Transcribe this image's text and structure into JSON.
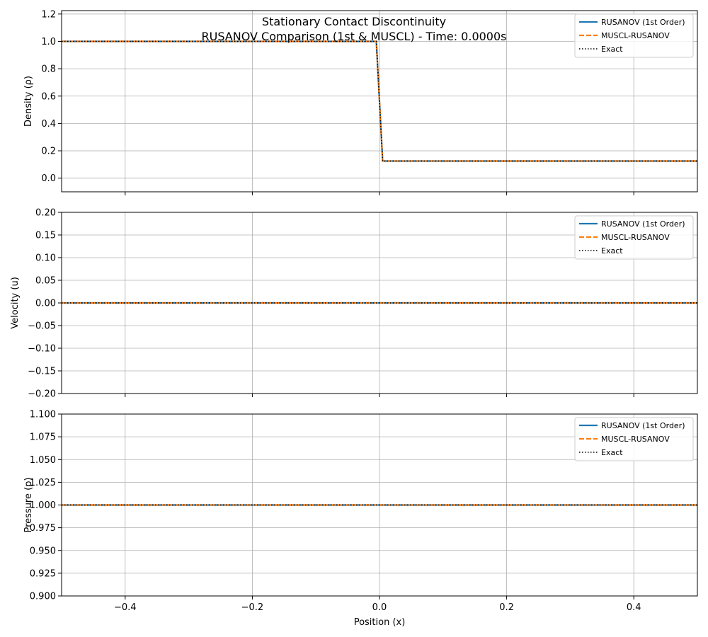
{
  "chart_data": {
    "title": "Stationary Contact Discontinuity",
    "subtitle": "RUSANOV Comparison (1st & MUSCL) - Time: 0.0000s",
    "xlabel": "Position (x)",
    "xlim": [
      -0.5,
      0.5
    ],
    "xticks": [
      -0.4,
      -0.2,
      0.0,
      0.2,
      0.4
    ],
    "xtick_labels": [
      "−0.4",
      "−0.2",
      "0.0",
      "0.2",
      "0.4"
    ],
    "colors": {
      "rusanov": "#1f77b4",
      "muscl": "#ff7f0e",
      "exact": "#000000"
    },
    "panels": [
      {
        "type": "line",
        "ylabel": "Density (ρ)",
        "ylim": [
          -0.1,
          1.225
        ],
        "yticks": [
          0.0,
          0.2,
          0.4,
          0.6,
          0.8,
          1.0,
          1.2
        ],
        "ytick_labels": [
          "0.0",
          "0.2",
          "0.4",
          "0.6",
          "0.8",
          "1.0",
          "1.2"
        ],
        "grid": true,
        "legend": "upper-right",
        "series": [
          {
            "name": "RUSANOV (1st Order)",
            "style": "solid",
            "color": "#1f77b4",
            "x": [
              -0.5,
              -0.005,
              0.005,
              0.5
            ],
            "y": [
              1.0,
              1.0,
              0.125,
              0.125
            ]
          },
          {
            "name": "MUSCL-RUSANOV",
            "style": "dashed",
            "color": "#ff7f0e",
            "x": [
              -0.5,
              -0.005,
              0.005,
              0.5
            ],
            "y": [
              1.0,
              1.0,
              0.125,
              0.125
            ]
          },
          {
            "name": "Exact",
            "style": "dotted",
            "color": "#000000",
            "x": [
              -0.5,
              -0.005,
              0.005,
              0.5
            ],
            "y": [
              1.0,
              1.0,
              0.125,
              0.125
            ]
          }
        ]
      },
      {
        "type": "line",
        "ylabel": "Velocity (u)",
        "ylim": [
          -0.2,
          0.2
        ],
        "yticks": [
          -0.2,
          -0.15,
          -0.1,
          -0.05,
          0.0,
          0.05,
          0.1,
          0.15,
          0.2
        ],
        "ytick_labels": [
          "−0.20",
          "−0.15",
          "−0.10",
          "−0.05",
          "0.00",
          "0.05",
          "0.10",
          "0.15",
          "0.20"
        ],
        "grid": true,
        "legend": "upper-right",
        "series": [
          {
            "name": "RUSANOV (1st Order)",
            "style": "solid",
            "color": "#1f77b4",
            "x": [
              -0.5,
              0.5
            ],
            "y": [
              0.0,
              0.0
            ]
          },
          {
            "name": "MUSCL-RUSANOV",
            "style": "dashed",
            "color": "#ff7f0e",
            "x": [
              -0.5,
              0.5
            ],
            "y": [
              0.0,
              0.0
            ]
          },
          {
            "name": "Exact",
            "style": "dotted",
            "color": "#000000",
            "x": [
              -0.5,
              0.5
            ],
            "y": [
              0.0,
              0.0
            ]
          }
        ]
      },
      {
        "type": "line",
        "ylabel": "Pressure (p)",
        "ylim": [
          0.9,
          1.1
        ],
        "yticks": [
          0.9,
          0.925,
          0.95,
          0.975,
          1.0,
          1.025,
          1.05,
          1.075,
          1.1
        ],
        "ytick_labels": [
          "0.900",
          "0.925",
          "0.950",
          "0.975",
          "1.000",
          "1.025",
          "1.050",
          "1.075",
          "1.100"
        ],
        "grid": true,
        "legend": "upper-right",
        "series": [
          {
            "name": "RUSANOV (1st Order)",
            "style": "solid",
            "color": "#1f77b4",
            "x": [
              -0.5,
              0.5
            ],
            "y": [
              1.0,
              1.0
            ]
          },
          {
            "name": "MUSCL-RUSANOV",
            "style": "dashed",
            "color": "#ff7f0e",
            "x": [
              -0.5,
              0.5
            ],
            "y": [
              1.0,
              1.0
            ]
          },
          {
            "name": "Exact",
            "style": "dotted",
            "color": "#000000",
            "x": [
              -0.5,
              0.5
            ],
            "y": [
              1.0,
              1.0
            ]
          }
        ]
      }
    ]
  }
}
